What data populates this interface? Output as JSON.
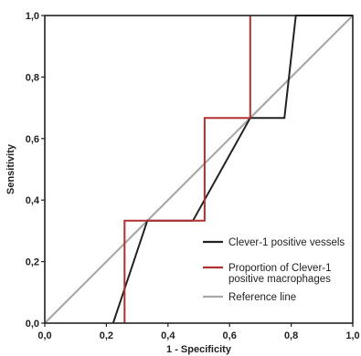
{
  "chart_data": {
    "type": "line",
    "xlabel": "1 - Specificity",
    "ylabel": "Sensitivity",
    "xlim": [
      0,
      1
    ],
    "ylim": [
      0,
      1
    ],
    "xticks": [
      "0,0",
      "0,2",
      "0,4",
      "0,6",
      "0,8",
      "1,0"
    ],
    "yticks": [
      "0,0",
      "0,2",
      "0,4",
      "0,6",
      "0,8",
      "1,0"
    ],
    "grid": false,
    "legend_position": "bottom-right",
    "series": [
      {
        "name": "Clever-1 positive vessels",
        "color": "#222222",
        "points": [
          [
            0.222,
            0.0
          ],
          [
            0.333,
            0.333
          ],
          [
            0.481,
            0.333
          ],
          [
            0.667,
            0.667
          ],
          [
            0.778,
            0.667
          ],
          [
            0.815,
            1.0
          ],
          [
            1.0,
            1.0
          ]
        ]
      },
      {
        "name": "Proportion of Clever-1 positive macrophages",
        "legend_lines": [
          "Proportion of Clever-1",
          "positive macrophages"
        ],
        "color": "#b03030",
        "points": [
          [
            0.259,
            0.0
          ],
          [
            0.259,
            0.333
          ],
          [
            0.519,
            0.333
          ],
          [
            0.519,
            0.667
          ],
          [
            0.667,
            0.667
          ],
          [
            0.667,
            1.0
          ]
        ]
      },
      {
        "name": "Reference line",
        "color": "#a8a8a8",
        "points": [
          [
            0,
            0
          ],
          [
            1,
            1
          ]
        ]
      }
    ]
  }
}
